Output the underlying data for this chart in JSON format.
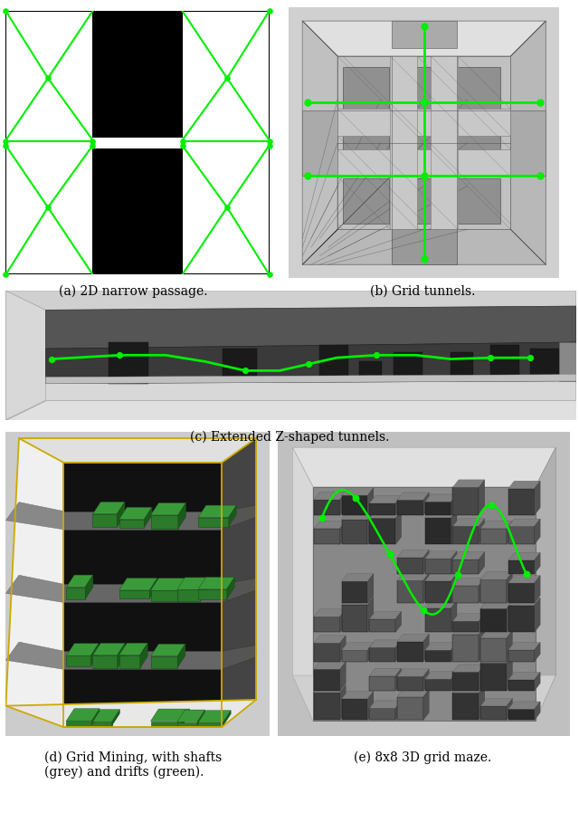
{
  "fig_width": 6.4,
  "fig_height": 9.2,
  "background_color": "#ffffff",
  "caption_a": "(a) 2D narrow passage.",
  "caption_b": "(b) Grid tunnels.",
  "caption_c": "(c) Extended Z-shaped tunnels.",
  "caption_d": "(d) Grid Mining, with shafts\n(grey) and drifts (green).",
  "caption_e": "(e) 8x8 3D grid maze.",
  "caption_fontsize": 10,
  "green_color": "#00ee00",
  "black_color": "#000000",
  "white_color": "#ffffff",
  "yellow": "#ccaa00"
}
